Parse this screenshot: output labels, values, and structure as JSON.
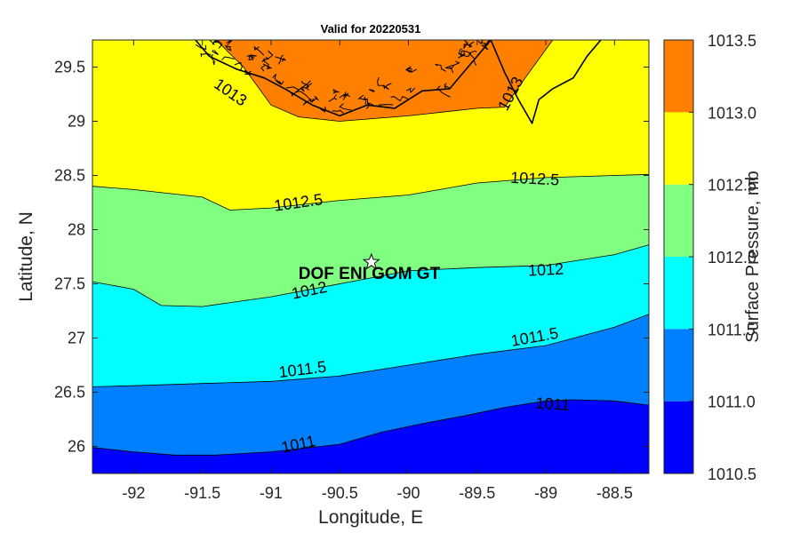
{
  "title": "Valid for 20220531",
  "x_axis": {
    "label": "Longitude, E",
    "range": [
      -92.3,
      -88.25
    ],
    "ticks": [
      -92,
      -91.5,
      -91,
      -90.5,
      -90,
      -89.5,
      -89,
      -88.5
    ],
    "tick_labels": [
      "-92",
      "-91.5",
      "-91",
      "-90.5",
      "-90",
      "-89.5",
      "-89",
      "-88.5"
    ]
  },
  "y_axis": {
    "label": "Latitude, N",
    "range": [
      25.75,
      29.75
    ],
    "ticks": [
      26,
      26.5,
      27,
      27.5,
      28,
      28.5,
      29,
      29.5
    ],
    "tick_labels": [
      "26",
      "26.5",
      "27",
      "27.5",
      "28",
      "28.5",
      "29",
      "29.5"
    ]
  },
  "colorbar": {
    "label": "Surface Pressure, mb",
    "levels": [
      {
        "range": [
          1010.5,
          1011.0
        ],
        "color": "#0000ff"
      },
      {
        "range": [
          1011.0,
          1011.5
        ],
        "color": "#0080ff"
      },
      {
        "range": [
          1011.5,
          1012.0
        ],
        "color": "#00ffff"
      },
      {
        "range": [
          1012.0,
          1012.5
        ],
        "color": "#80ff80"
      },
      {
        "range": [
          1012.5,
          1013.0
        ],
        "color": "#ffff00"
      },
      {
        "range": [
          1013.0,
          1013.5
        ],
        "color": "#ff8000"
      }
    ],
    "tick_labels": [
      "1010.5",
      "1011.0",
      "1011.5",
      "1012.0",
      "1012.5",
      "1013.0",
      "1013.5"
    ]
  },
  "contours": [
    {
      "level": 1011,
      "label": "1011",
      "points": [
        [
          -92.3,
          25.99
        ],
        [
          -92.0,
          25.95
        ],
        [
          -91.7,
          25.92
        ],
        [
          -91.4,
          25.92
        ],
        [
          -91.0,
          25.95
        ],
        [
          -90.5,
          26.02
        ],
        [
          -90.2,
          26.13
        ],
        [
          -89.9,
          26.21
        ],
        [
          -89.6,
          26.28
        ],
        [
          -89.3,
          26.36
        ],
        [
          -89.0,
          26.42
        ],
        [
          -88.8,
          26.43
        ],
        [
          -88.5,
          26.42
        ],
        [
          -88.25,
          26.38
        ]
      ]
    },
    {
      "level": 1011.5,
      "label": "1011.5",
      "points": [
        [
          -92.3,
          26.55
        ],
        [
          -92.0,
          26.56
        ],
        [
          -91.5,
          26.58
        ],
        [
          -91.0,
          26.6
        ],
        [
          -90.5,
          26.65
        ],
        [
          -90.0,
          26.75
        ],
        [
          -89.5,
          26.85
        ],
        [
          -89.0,
          26.93
        ],
        [
          -88.5,
          27.1
        ],
        [
          -88.25,
          27.22
        ]
      ]
    },
    {
      "level": 1012,
      "label": "1012",
      "points": [
        [
          -92.3,
          27.52
        ],
        [
          -92.0,
          27.45
        ],
        [
          -91.8,
          27.3
        ],
        [
          -91.5,
          27.29
        ],
        [
          -91.0,
          27.38
        ],
        [
          -90.5,
          27.5
        ],
        [
          -90.0,
          27.62
        ],
        [
          -89.5,
          27.65
        ],
        [
          -89.0,
          27.67
        ],
        [
          -88.5,
          27.77
        ],
        [
          -88.25,
          27.86
        ]
      ]
    },
    {
      "level": 1012.5,
      "label": "1012.5",
      "points": [
        [
          -92.3,
          28.4
        ],
        [
          -92.0,
          28.37
        ],
        [
          -91.5,
          28.3
        ],
        [
          -91.3,
          28.18
        ],
        [
          -91.0,
          28.2
        ],
        [
          -90.5,
          28.27
        ],
        [
          -90.0,
          28.32
        ],
        [
          -89.5,
          28.43
        ],
        [
          -89.0,
          28.48
        ],
        [
          -88.5,
          28.5
        ],
        [
          -88.25,
          28.51
        ]
      ]
    },
    {
      "level": 1013,
      "label": "1013",
      "points": [
        [
          -91.4,
          29.75
        ],
        [
          -91.2,
          29.5
        ],
        [
          -91.0,
          29.15
        ],
        [
          -90.8,
          29.04
        ],
        [
          -90.5,
          29.0
        ],
        [
          -90.0,
          29.05
        ],
        [
          -89.5,
          29.12
        ],
        [
          -89.3,
          29.13
        ],
        [
          -89.15,
          29.4
        ],
        [
          -88.95,
          29.75
        ]
      ]
    }
  ],
  "contour_labels": [
    {
      "text": "1013",
      "lon": -91.3,
      "lat": 29.26,
      "angle": 35
    },
    {
      "text": "1013",
      "lon": -89.25,
      "lat": 29.25,
      "angle": -62
    },
    {
      "text": "1012.5",
      "lon": -90.8,
      "lat": 28.24,
      "angle": -8
    },
    {
      "text": "1012.5",
      "lon": -89.08,
      "lat": 28.46,
      "angle": 3
    },
    {
      "text": "1012",
      "lon": -90.72,
      "lat": 27.43,
      "angle": -12
    },
    {
      "text": "1012",
      "lon": -89.0,
      "lat": 27.62,
      "angle": -3
    },
    {
      "text": "1011.5",
      "lon": -90.77,
      "lat": 26.7,
      "angle": -7
    },
    {
      "text": "1011.5",
      "lon": -89.08,
      "lat": 27.0,
      "angle": -10
    },
    {
      "text": "1011",
      "lon": -90.8,
      "lat": 26.01,
      "angle": -12
    },
    {
      "text": "1011",
      "lon": -88.95,
      "lat": 26.38,
      "angle": 4
    }
  ],
  "station": {
    "name": "DOF ENI GOM GT",
    "lon": -90.27,
    "lat": 27.7
  },
  "coastline": [
    [
      -91.55,
      29.75
    ],
    [
      -91.45,
      29.6
    ],
    [
      -91.25,
      29.48
    ],
    [
      -91.05,
      29.4
    ],
    [
      -90.9,
      29.3
    ],
    [
      -90.7,
      29.15
    ],
    [
      -90.5,
      29.05
    ],
    [
      -90.3,
      29.15
    ],
    [
      -90.1,
      29.12
    ],
    [
      -89.9,
      29.28
    ],
    [
      -89.7,
      29.3
    ],
    [
      -89.6,
      29.45
    ],
    [
      -89.5,
      29.6
    ],
    [
      -89.4,
      29.75
    ]
  ],
  "coastline_east": [
    [
      -89.4,
      29.75
    ],
    [
      -89.3,
      29.45
    ],
    [
      -89.2,
      29.2
    ],
    [
      -89.1,
      28.98
    ],
    [
      -89.05,
      29.2
    ],
    [
      -88.95,
      29.3
    ],
    [
      -88.8,
      29.4
    ],
    [
      -88.7,
      29.6
    ],
    [
      -88.6,
      29.75
    ]
  ]
}
